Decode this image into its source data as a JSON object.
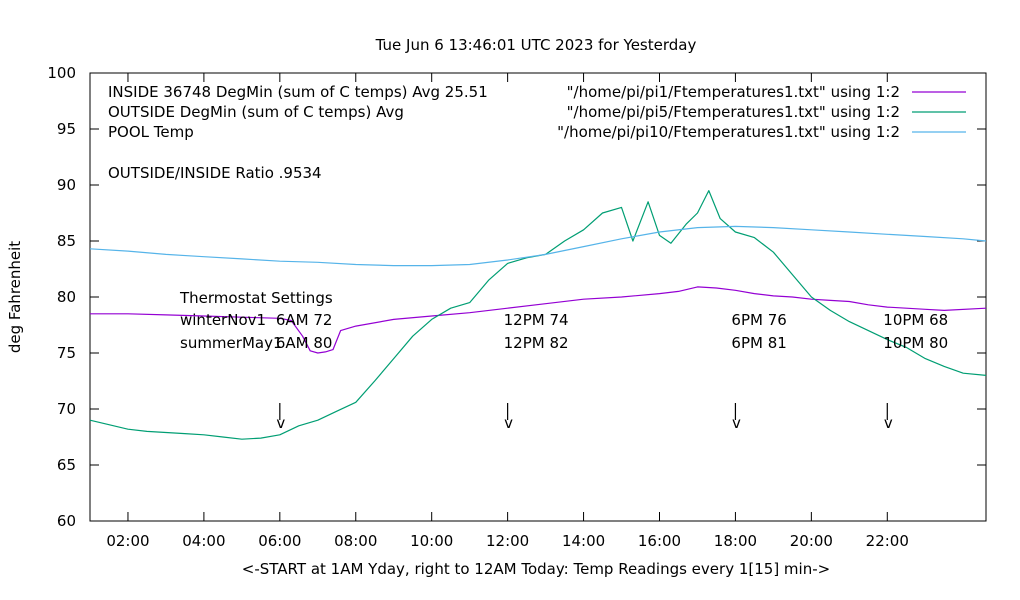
{
  "chart_data": {
    "type": "line",
    "title": "Tue Jun  6 13:46:01 UTC 2023 for Yesterday",
    "xlabel": "<-START at 1AM Yday, right to 12AM Today:  Temp Readings every 1[15] min->",
    "ylabel": "deg Fahrenheit",
    "xlim": [
      1,
      24.6
    ],
    "ylim": [
      60,
      100
    ],
    "x_ticks": [
      2,
      4,
      6,
      8,
      10,
      12,
      14,
      16,
      18,
      20,
      22
    ],
    "x_tick_labels": [
      "02:00",
      "04:00",
      "06:00",
      "08:00",
      "10:00",
      "12:00",
      "14:00",
      "16:00",
      "18:00",
      "20:00",
      "22:00"
    ],
    "y_ticks": [
      60,
      65,
      70,
      75,
      80,
      85,
      90,
      95,
      100
    ],
    "y_tick_labels": [
      "60",
      "65",
      "70",
      "75",
      "80",
      "85",
      "90",
      "95",
      "100"
    ],
    "grid": false,
    "legend_position": "top",
    "legend": [
      {
        "label": "INSIDE 36748 DegMin (sum of C temps) Avg 25.51",
        "source": "\"/home/pi/pi1/Ftemperatures1.txt\" using 1:2",
        "color": "#9400d3"
      },
      {
        "label": "OUTSIDE  DegMin (sum of C temps) Avg",
        "source": "\"/home/pi/pi5/Ftemperatures1.txt\" using 1:2",
        "color": "#009e73"
      },
      {
        "label": "POOL Temp",
        "source": "\"/home/pi/pi10/Ftemperatures1.txt\" using 1:2",
        "color": "#56b4e9"
      }
    ],
    "annotations": {
      "ratio": "OUTSIDE/INSIDE Ratio .9534",
      "thermostat_title": "Thermostat Settings",
      "schedule_rows": [
        {
          "name": "winterNov1",
          "settings": [
            {
              "x": 6,
              "text": "6AM 72"
            },
            {
              "x": 12,
              "text": "12PM 74"
            },
            {
              "x": 18,
              "text": "6PM 76"
            },
            {
              "x": 22,
              "text": "10PM 68"
            }
          ]
        },
        {
          "name": "summerMay1",
          "settings": [
            {
              "x": 6,
              "text": "6AM 80"
            },
            {
              "x": 12,
              "text": "12PM 82"
            },
            {
              "x": 18,
              "text": "6PM 81"
            },
            {
              "x": 22,
              "text": "10PM 80"
            }
          ]
        }
      ],
      "arrows": [
        {
          "x": 6,
          "text": "v"
        },
        {
          "x": 12,
          "text": "v"
        },
        {
          "x": 18,
          "text": "v"
        },
        {
          "x": 22,
          "text": "v"
        }
      ]
    },
    "series": [
      {
        "name": "INSIDE",
        "color": "#9400d3",
        "x": [
          1,
          2,
          3,
          4,
          5,
          6,
          6.3,
          6.6,
          6.8,
          7.0,
          7.2,
          7.4,
          7.6,
          8,
          9,
          10,
          11,
          12,
          13,
          14,
          15,
          16,
          16.5,
          17,
          17.5,
          18,
          18.5,
          19,
          19.5,
          20,
          20.5,
          21,
          21.5,
          22,
          22.5,
          23,
          23.5,
          24.6
        ],
        "y": [
          78.5,
          78.5,
          78.4,
          78.3,
          78.2,
          78.1,
          77.9,
          76.5,
          75.2,
          75.0,
          75.1,
          75.3,
          77.0,
          77.4,
          78.0,
          78.3,
          78.6,
          79.0,
          79.4,
          79.8,
          80.0,
          80.3,
          80.5,
          80.9,
          80.8,
          80.6,
          80.3,
          80.1,
          80.0,
          79.8,
          79.7,
          79.6,
          79.3,
          79.1,
          79.0,
          78.9,
          78.8,
          79.0
        ]
      },
      {
        "name": "OUTSIDE",
        "color": "#009e73",
        "x": [
          1,
          1.5,
          2,
          2.5,
          3,
          3.5,
          4,
          4.5,
          5,
          5.5,
          6,
          6.5,
          7,
          7.5,
          8,
          8.5,
          9,
          9.5,
          10,
          10.5,
          11,
          11.5,
          12,
          12.5,
          13,
          13.5,
          14,
          14.5,
          15,
          15.3,
          15.7,
          16,
          16.3,
          16.7,
          17,
          17.3,
          17.6,
          18,
          18.5,
          19,
          19.5,
          20,
          20.5,
          21,
          21.5,
          22,
          22.5,
          23,
          23.5,
          24,
          24.6
        ],
        "y": [
          69.0,
          68.6,
          68.2,
          68.0,
          67.9,
          67.8,
          67.7,
          67.5,
          67.3,
          67.4,
          67.7,
          68.5,
          69.0,
          69.8,
          70.6,
          72.5,
          74.5,
          76.5,
          78.0,
          79.0,
          79.5,
          81.5,
          83.0,
          83.5,
          83.8,
          85.0,
          86.0,
          87.5,
          88.0,
          85.0,
          88.5,
          85.5,
          84.8,
          86.5,
          87.5,
          89.5,
          87.0,
          85.8,
          85.3,
          84.0,
          82.0,
          80.0,
          78.8,
          77.8,
          77.0,
          76.2,
          75.5,
          74.5,
          73.8,
          73.2,
          73.0
        ]
      },
      {
        "name": "POOL",
        "color": "#56b4e9",
        "x": [
          1,
          2,
          3,
          4,
          5,
          6,
          7,
          8,
          9,
          10,
          11,
          12,
          13,
          14,
          15,
          16,
          17,
          18,
          19,
          20,
          21,
          22,
          23,
          24,
          24.6
        ],
        "y": [
          84.3,
          84.1,
          83.8,
          83.6,
          83.4,
          83.2,
          83.1,
          82.9,
          82.8,
          82.8,
          82.9,
          83.3,
          83.8,
          84.5,
          85.2,
          85.8,
          86.2,
          86.3,
          86.2,
          86.0,
          85.8,
          85.6,
          85.4,
          85.2,
          85.0
        ]
      }
    ]
  }
}
